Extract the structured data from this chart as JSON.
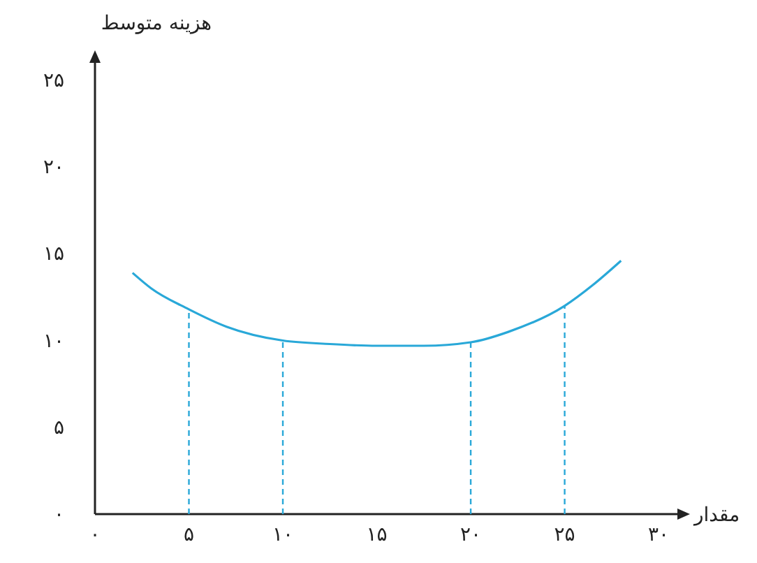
{
  "chart_data": {
    "type": "line",
    "xlabel": "مقدار",
    "ylabel": "هزینه متوسط",
    "x": [
      2,
      3,
      5,
      7,
      10,
      12.5,
      15,
      17.5,
      20,
      22,
      25,
      26.5,
      28
    ],
    "series": [
      {
        "color": "#29a8d8",
        "values": [
          13.9,
          13,
          11.8,
          10.8,
          10,
          9.8,
          9.7,
          9.7,
          9.9,
          10.5,
          12,
          13.2,
          14.6
        ]
      }
    ],
    "xlim": [
      0,
      31
    ],
    "ylim": [
      0,
      26
    ],
    "xticks": [
      {
        "value": 0,
        "label": "۰"
      },
      {
        "value": 5,
        "label": "۵"
      },
      {
        "value": 10,
        "label": "۱۰"
      },
      {
        "value": 15,
        "label": "۱۵"
      },
      {
        "value": 20,
        "label": "۲۰"
      },
      {
        "value": 25,
        "label": "۲۵"
      },
      {
        "value": 30,
        "label": "۳۰"
      }
    ],
    "yticks": [
      {
        "value": 0,
        "label": "۰"
      },
      {
        "value": 5,
        "label": "۵"
      },
      {
        "value": 10,
        "label": "۱۰"
      },
      {
        "value": 15,
        "label": "۱۵"
      },
      {
        "value": 20,
        "label": "۲۰"
      },
      {
        "value": 25,
        "label": "۲۵"
      }
    ],
    "ref_lines": [
      {
        "axis": "x",
        "value": 5,
        "color": "#29a8d8",
        "line_style": "dashed"
      },
      {
        "axis": "x",
        "value": 10,
        "color": "#29a8d8",
        "line_style": "dashed"
      },
      {
        "axis": "x",
        "value": 20,
        "color": "#29a8d8",
        "line_style": "dashed"
      },
      {
        "axis": "x",
        "value": 25,
        "color": "#29a8d8",
        "line_style": "dashed"
      }
    ],
    "grid": false,
    "marker": "none",
    "line_style": "solid"
  }
}
